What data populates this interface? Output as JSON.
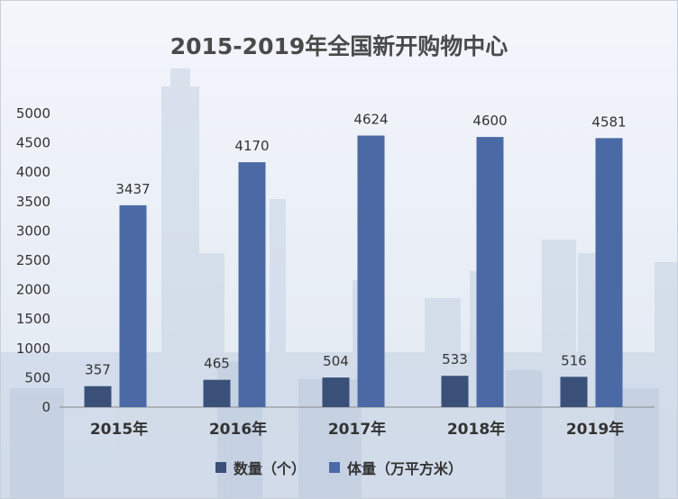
{
  "chart_data": {
    "type": "bar",
    "title": "2015-2019年全国新开购物中心",
    "categories": [
      "2015年",
      "2016年",
      "2017年",
      "2018年",
      "2019年"
    ],
    "series": [
      {
        "name": "数量（个）",
        "values": [
          357,
          465,
          504,
          533,
          516
        ],
        "color": "#3b5079"
      },
      {
        "name": "体量（万平方米）",
        "values": [
          3437,
          4170,
          4624,
          4600,
          4581
        ],
        "color": "#4b6aa5"
      }
    ],
    "ylim": [
      0,
      5000
    ],
    "yticks": [
      0,
      500,
      1000,
      1500,
      2000,
      2500,
      3000,
      3500,
      4000,
      4500,
      5000
    ],
    "legend_position": "bottom",
    "grid": false
  }
}
